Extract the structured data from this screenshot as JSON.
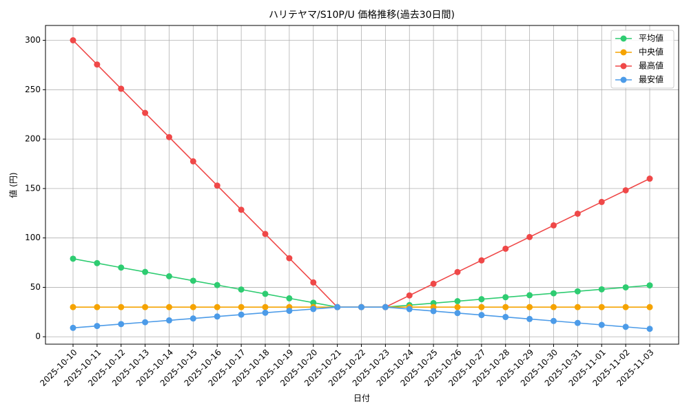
{
  "chart_data": {
    "type": "line",
    "title": "ハリテヤマ/S10P/U 価格推移(過去30日間)",
    "x_label": "日付",
    "y_label": "値 (円)",
    "categories": [
      "2025-10-10",
      "2025-10-11",
      "2025-10-12",
      "2025-10-13",
      "2025-10-14",
      "2025-10-15",
      "2025-10-16",
      "2025-10-17",
      "2025-10-18",
      "2025-10-19",
      "2025-10-20",
      "2025-10-21",
      "2025-10-22",
      "2025-10-23",
      "2025-10-24",
      "2025-10-25",
      "2025-10-26",
      "2025-10-27",
      "2025-10-28",
      "2025-10-29",
      "2025-10-30",
      "2025-10-31",
      "2025-11-01",
      "2025-11-02",
      "2025-11-03"
    ],
    "series": [
      {
        "name": "平均値",
        "color": "#2ecc71",
        "values": [
          79,
          74.5,
          70,
          65.6,
          61.2,
          56.7,
          52.3,
          47.8,
          43.4,
          38.9,
          34.5,
          30,
          30,
          30,
          32,
          34,
          36,
          38,
          40,
          42,
          44,
          46,
          48,
          50,
          52
        ]
      },
      {
        "name": "中央値",
        "color": "#f5a300",
        "values": [
          30,
          30,
          30,
          30,
          30,
          30,
          30,
          30,
          30,
          30,
          30,
          30,
          30,
          30,
          30,
          30,
          30,
          30,
          30,
          30,
          30,
          30,
          30,
          30,
          30
        ]
      },
      {
        "name": "最高値",
        "color": "#ef4848",
        "values": [
          300,
          275.5,
          251,
          226.5,
          202,
          177.5,
          153,
          128.5,
          104,
          79.5,
          55,
          30,
          30,
          30,
          41.8,
          53.6,
          65.5,
          77.3,
          89.1,
          100.9,
          112.7,
          124.5,
          136.4,
          148.2,
          160
        ]
      },
      {
        "name": "最安値",
        "color": "#4c9be8",
        "values": [
          9,
          10.9,
          12.8,
          14.7,
          16.6,
          18.5,
          20.5,
          22.4,
          24.3,
          26.2,
          28.1,
          30,
          30,
          30,
          28,
          26,
          24,
          22,
          20,
          18,
          16,
          14,
          12,
          10,
          8
        ]
      }
    ],
    "ylim": [
      -7.5,
      315
    ],
    "yticks": [
      0,
      50,
      100,
      150,
      200,
      250,
      300
    ],
    "grid": true,
    "legend": "upper right"
  }
}
